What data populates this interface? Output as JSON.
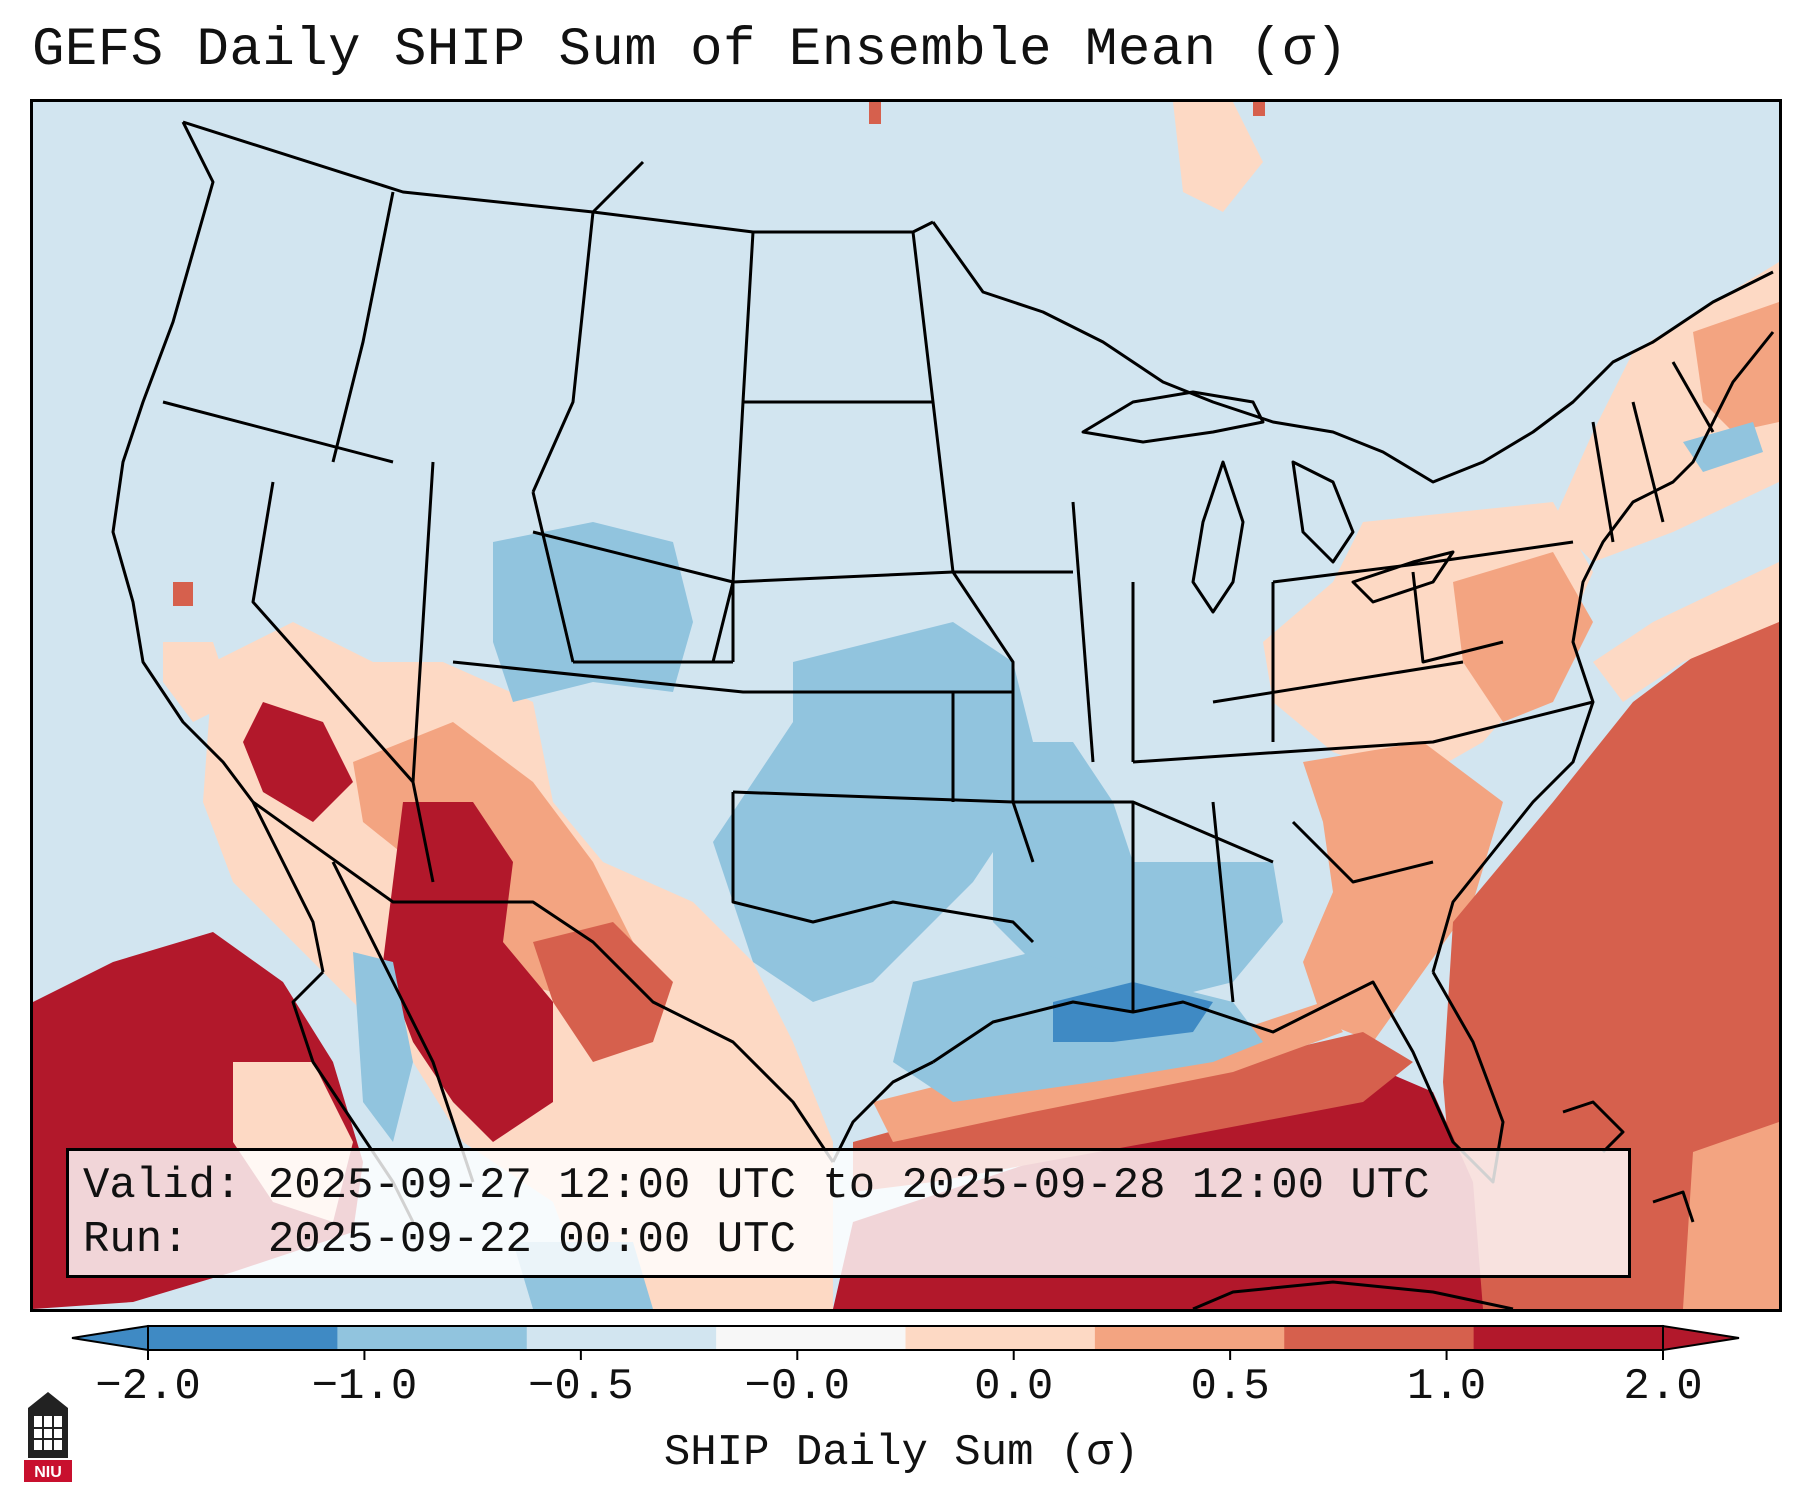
{
  "title": "GEFS Daily SHIP Sum of Ensemble Mean (σ)",
  "info": {
    "valid_label": "Valid:",
    "valid_value": "2025-09-27 12:00 UTC to 2025-09-28 12:00 UTC",
    "run_label": "Run:",
    "run_value": "2025-09-22 00:00 UTC"
  },
  "colorbar": {
    "label": "SHIP Daily Sum (σ)",
    "ticks": [
      "−2.0",
      "−1.0",
      "−0.5",
      "−0.0",
      "0.0",
      "0.5",
      "1.0",
      "2.0"
    ],
    "colors": [
      "#3f8ac4",
      "#91c4de",
      "#d2e5f0",
      "#f7f7f7",
      "#fdd9c4",
      "#f3a481",
      "#d6604d",
      "#b2182b"
    ]
  },
  "logo": {
    "name": "niu-logo",
    "text": "NIU"
  },
  "palette": {
    "strong_neg": "#3f8ac4",
    "neg": "#91c4de",
    "weak_neg": "#d2e5f0",
    "weak_pos": "#fdd9c4",
    "pos": "#f3a481",
    "strong_pos": "#d6604d",
    "extreme_pos": "#b2182b"
  }
}
